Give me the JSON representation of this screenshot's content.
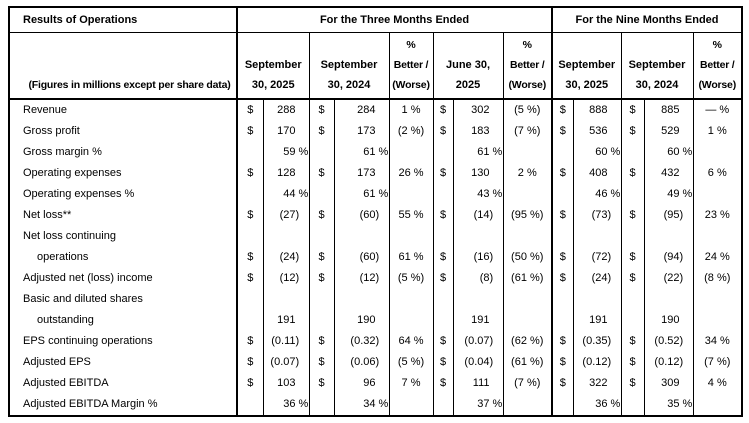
{
  "meta": {
    "background_color": "#ffffff",
    "border_color": "#000000",
    "text_color": "#000000"
  },
  "header": {
    "title": "Results of Operations",
    "subtitle": "(Figures in millions except per share data)",
    "group_three_months": "For the Three Months Ended",
    "group_nine_months": "For the Nine Months Ended",
    "pct_header_lines": [
      "%",
      "Better /",
      "(Worse)"
    ],
    "date_columns": [
      {
        "line1": "September",
        "line2": "30, 2025"
      },
      {
        "line1": "September",
        "line2": "30, 2024"
      },
      {
        "line1": "June 30,",
        "line2": "2025"
      },
      {
        "line1": "September",
        "line2": "30, 2025"
      },
      {
        "line1": "September",
        "line2": "30, 2024"
      }
    ]
  },
  "rows": [
    {
      "label": "Revenue",
      "indent": false,
      "cells": [
        {
          "d": "$",
          "n": "288",
          "s": ""
        },
        {
          "d": "$",
          "n": "284",
          "s": ""
        },
        "1 %",
        {
          "d": "$",
          "n": "302",
          "s": ""
        },
        "(5 %)",
        {
          "d": "$",
          "n": "888",
          "s": ""
        },
        {
          "d": "$",
          "n": "885",
          "s": ""
        },
        "— %"
      ]
    },
    {
      "label": "Gross profit",
      "indent": false,
      "cells": [
        {
          "d": "$",
          "n": "170",
          "s": ""
        },
        {
          "d": "$",
          "n": "173",
          "s": ""
        },
        "(2 %)",
        {
          "d": "$",
          "n": "183",
          "s": ""
        },
        "(7 %)",
        {
          "d": "$",
          "n": "536",
          "s": ""
        },
        {
          "d": "$",
          "n": "529",
          "s": ""
        },
        "1 %"
      ]
    },
    {
      "label": "Gross margin %",
      "indent": false,
      "cells": [
        {
          "d": "",
          "n": "59",
          "s": " %"
        },
        {
          "d": "",
          "n": "61",
          "s": " %"
        },
        "",
        {
          "d": "",
          "n": "61",
          "s": " %"
        },
        "",
        {
          "d": "",
          "n": "60",
          "s": " %"
        },
        {
          "d": "",
          "n": "60",
          "s": " %"
        },
        ""
      ]
    },
    {
      "label": "Operating expenses",
      "indent": false,
      "cells": [
        {
          "d": "$",
          "n": "128",
          "s": ""
        },
        {
          "d": "$",
          "n": "173",
          "s": ""
        },
        "26 %",
        {
          "d": "$",
          "n": "130",
          "s": ""
        },
        "2 %",
        {
          "d": "$",
          "n": "408",
          "s": ""
        },
        {
          "d": "$",
          "n": "432",
          "s": ""
        },
        "6 %"
      ]
    },
    {
      "label": "Operating expenses %",
      "indent": false,
      "cells": [
        {
          "d": "",
          "n": "44",
          "s": " %"
        },
        {
          "d": "",
          "n": "61",
          "s": " %"
        },
        "",
        {
          "d": "",
          "n": "43",
          "s": " %"
        },
        "",
        {
          "d": "",
          "n": "46",
          "s": " %"
        },
        {
          "d": "",
          "n": "49",
          "s": " %"
        },
        ""
      ]
    },
    {
      "label": "Net loss**",
      "indent": false,
      "cells": [
        {
          "d": "$",
          "n": "(27",
          "s": ")"
        },
        {
          "d": "$",
          "n": "(60",
          "s": ")"
        },
        "55 %",
        {
          "d": "$",
          "n": "(14",
          "s": ")"
        },
        "(95 %)",
        {
          "d": "$",
          "n": "(73",
          "s": ")"
        },
        {
          "d": "$",
          "n": "(95",
          "s": ")"
        },
        "23 %"
      ]
    },
    {
      "label": "Net loss continuing",
      "indent": false,
      "cells": [
        null,
        null,
        "",
        null,
        "",
        null,
        null,
        ""
      ]
    },
    {
      "label": "operations",
      "indent": true,
      "cells": [
        {
          "d": "$",
          "n": "(24",
          "s": ")"
        },
        {
          "d": "$",
          "n": "(60",
          "s": ")"
        },
        "61 %",
        {
          "d": "$",
          "n": "(16",
          "s": ")"
        },
        "(50 %)",
        {
          "d": "$",
          "n": "(72",
          "s": ")"
        },
        {
          "d": "$",
          "n": "(94",
          "s": ")"
        },
        "24 %"
      ]
    },
    {
      "label": "Adjusted net (loss) income",
      "indent": false,
      "cells": [
        {
          "d": "$",
          "n": "(12",
          "s": ")"
        },
        {
          "d": "$",
          "n": "(12",
          "s": ")"
        },
        "(5 %)",
        {
          "d": "$",
          "n": "(8",
          "s": ")"
        },
        "(61 %)",
        {
          "d": "$",
          "n": "(24",
          "s": ")"
        },
        {
          "d": "$",
          "n": "(22",
          "s": ")"
        },
        "(8 %)"
      ]
    },
    {
      "label": "Basic and diluted shares",
      "indent": false,
      "cells": [
        null,
        null,
        "",
        null,
        "",
        null,
        null,
        ""
      ]
    },
    {
      "label": "outstanding",
      "indent": true,
      "cells": [
        {
          "d": "",
          "n": "191",
          "s": ""
        },
        {
          "d": "",
          "n": "190",
          "s": ""
        },
        "",
        {
          "d": "",
          "n": "191",
          "s": ""
        },
        "",
        {
          "d": "",
          "n": "191",
          "s": ""
        },
        {
          "d": "",
          "n": "190",
          "s": ""
        },
        ""
      ]
    },
    {
      "label": "EPS continuing operations",
      "indent": false,
      "cells": [
        {
          "d": "$",
          "n": "(0.11",
          "s": ")"
        },
        {
          "d": "$",
          "n": "(0.32",
          "s": ")"
        },
        "64 %",
        {
          "d": "$",
          "n": "(0.07",
          "s": ")"
        },
        "(62 %)",
        {
          "d": "$",
          "n": "(0.35",
          "s": ")"
        },
        {
          "d": "$",
          "n": "(0.52",
          "s": ")"
        },
        "34 %"
      ]
    },
    {
      "label": "Adjusted EPS",
      "indent": false,
      "cells": [
        {
          "d": "$",
          "n": "(0.07",
          "s": ")"
        },
        {
          "d": "$",
          "n": "(0.06",
          "s": ")"
        },
        "(5 %)",
        {
          "d": "$",
          "n": "(0.04",
          "s": ")"
        },
        "(61 %)",
        {
          "d": "$",
          "n": "(0.12",
          "s": ")"
        },
        {
          "d": "$",
          "n": "(0.12",
          "s": ")"
        },
        "(7 %)"
      ]
    },
    {
      "label": "Adjusted EBITDA",
      "indent": false,
      "cells": [
        {
          "d": "$",
          "n": "103",
          "s": ""
        },
        {
          "d": "$",
          "n": "96",
          "s": ""
        },
        "7 %",
        {
          "d": "$",
          "n": "111",
          "s": ""
        },
        "(7 %)",
        {
          "d": "$",
          "n": "322",
          "s": ""
        },
        {
          "d": "$",
          "n": "309",
          "s": ""
        },
        "4 %"
      ]
    },
    {
      "label": "Adjusted EBITDA Margin %",
      "indent": false,
      "cells": [
        {
          "d": "",
          "n": "36",
          "s": " %"
        },
        {
          "d": "",
          "n": "34",
          "s": " %"
        },
        "",
        {
          "d": "",
          "n": "37",
          "s": " %"
        },
        "",
        {
          "d": "",
          "n": "36",
          "s": " %"
        },
        {
          "d": "",
          "n": "35",
          "s": " %"
        },
        ""
      ]
    }
  ]
}
